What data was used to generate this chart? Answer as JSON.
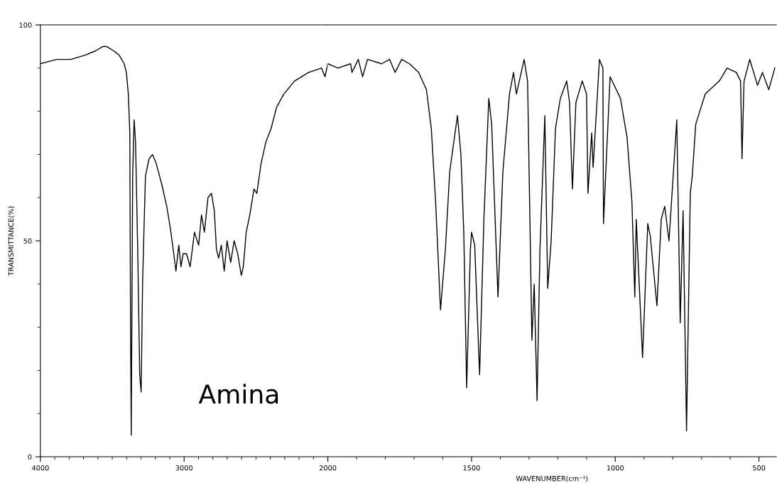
{
  "chart_data": [
    {
      "type": "line",
      "ylabel": "TRANSMITTANCE(%)",
      "annotations": [
        "Amina"
      ],
      "xlim": [
        4000,
        2000
      ],
      "ylim": [
        0,
        100
      ],
      "xticks": [
        4000,
        {
          "value": 3900,
          "label": null
        },
        {
          "value": 3800,
          "label": null
        },
        {
          "value": 3700,
          "label": null
        },
        {
          "value": 3600,
          "label": null
        },
        {
          "value": 3500,
          "label": null
        },
        {
          "value": 3400,
          "label": null
        },
        {
          "value": 3300,
          "label": null
        },
        {
          "value": 3200,
          "label": null
        },
        {
          "value": 3100,
          "label": null
        },
        3000,
        {
          "value": 2900,
          "label": null
        },
        {
          "value": 2800,
          "label": null
        },
        {
          "value": 2700,
          "label": null
        },
        {
          "value": 2600,
          "label": null
        },
        {
          "value": 2500,
          "label": null
        },
        {
          "value": 2400,
          "label": null
        },
        {
          "value": 2300,
          "label": null
        },
        {
          "value": 2200,
          "label": null
        },
        {
          "value": 2100,
          "label": null
        }
      ],
      "yticks": [
        0,
        {
          "value": 10,
          "label": null
        },
        {
          "value": 20,
          "label": null
        },
        {
          "value": 30,
          "label": null
        },
        {
          "value": 40,
          "label": null
        },
        50,
        {
          "value": 60,
          "label": null
        },
        {
          "value": 70,
          "label": null
        },
        {
          "value": 80,
          "label": null
        },
        {
          "value": 90,
          "label": null
        },
        100
      ],
      "series": [
        {
          "color": "#000000",
          "x": [
            4000,
            3886,
            3788,
            3689,
            3615,
            3565,
            3540,
            3491,
            3452,
            3417,
            3402,
            3388,
            3378,
            3373,
            3368,
            3358,
            3348,
            3338,
            3323,
            3309,
            3299,
            3289,
            3279,
            3269,
            3244,
            3220,
            3195,
            3155,
            3121,
            3096,
            3072,
            3057,
            3037,
            3022,
            3007,
            2983,
            2958,
            2928,
            2899,
            2879,
            2859,
            2834,
            2810,
            2790,
            2775,
            2760,
            2741,
            2721,
            2701,
            2676,
            2652,
            2627,
            2602,
            2588,
            2568,
            2543,
            2514,
            2494,
            2464,
            2430,
            2395,
            2356,
            2306,
            2232,
            2133,
            2044,
            2020,
            2000
          ],
          "values": [
            91,
            92,
            92,
            93,
            94,
            95,
            95,
            94,
            93,
            91,
            89,
            84,
            75,
            32,
            5,
            65,
            78,
            73,
            48,
            19,
            15,
            40,
            53,
            65,
            69,
            70,
            68,
            63,
            58,
            53,
            47,
            43,
            49,
            44,
            47,
            47,
            44,
            52,
            49,
            56,
            52,
            60,
            61,
            57,
            48,
            46,
            49,
            43,
            50,
            45,
            50,
            47,
            42,
            44,
            52,
            56,
            62,
            61,
            68,
            73,
            76,
            81,
            84,
            87,
            89,
            90,
            88,
            91
          ]
        }
      ]
    },
    {
      "type": "line",
      "xlabel": "WAVENUMBER(cm⁻¹)",
      "xlim": [
        2000,
        440
      ],
      "ylim": [
        0,
        100
      ],
      "tick_labels": "x",
      "xticks": [
        2000,
        {
          "value": 1900,
          "label": null
        },
        {
          "value": 1800,
          "label": null
        },
        {
          "value": 1700,
          "label": null
        },
        {
          "value": 1600,
          "label": null
        },
        1500,
        {
          "value": 1400,
          "label": null
        },
        {
          "value": 1300,
          "label": null
        },
        {
          "value": 1200,
          "label": null
        },
        {
          "value": 1100,
          "label": null
        },
        1000,
        {
          "value": 900,
          "label": null
        },
        {
          "value": 800,
          "label": null
        },
        {
          "value": 700,
          "label": null
        },
        {
          "value": 600,
          "label": null
        },
        500
      ],
      "series": [
        {
          "color": "#000000",
          "x": [
            2000,
            1965,
            1921,
            1916,
            1894,
            1879,
            1862,
            1813,
            1785,
            1766,
            1743,
            1716,
            1684,
            1657,
            1640,
            1625,
            1608,
            1591,
            1576,
            1549,
            1537,
            1527,
            1517,
            1504,
            1500,
            1489,
            1472,
            1457,
            1440,
            1430,
            1408,
            1391,
            1368,
            1354,
            1344,
            1317,
            1305,
            1290,
            1282,
            1272,
            1262,
            1245,
            1235,
            1223,
            1208,
            1191,
            1169,
            1159,
            1149,
            1137,
            1115,
            1100,
            1095,
            1082,
            1077,
            1055,
            1043,
            1041,
            1018,
            982,
            959,
            942,
            932,
            927,
            905,
            887,
            878,
            855,
            840,
            828,
            813,
            786,
            774,
            764,
            752,
            739,
            732,
            720,
            687,
            638,
            611,
            579,
            564,
            559,
            552,
            532,
            505,
            488,
            466,
            445
          ],
          "values": [
            91,
            90,
            91,
            89,
            92,
            88,
            92,
            91,
            92,
            89,
            92,
            91,
            89,
            85,
            76,
            59,
            34,
            48,
            66,
            79,
            70,
            52,
            16,
            48,
            52,
            49,
            19,
            55,
            83,
            77,
            37,
            66,
            84,
            89,
            84,
            92,
            87,
            27,
            40,
            13,
            48,
            79,
            39,
            50,
            76,
            83,
            87,
            82,
            62,
            82,
            87,
            84,
            61,
            75,
            67,
            92,
            90,
            54,
            88,
            83,
            74,
            59,
            37,
            55,
            23,
            54,
            51,
            35,
            55,
            58,
            50,
            78,
            31,
            57,
            6,
            61,
            65,
            77,
            84,
            87,
            90,
            89,
            87,
            69,
            87,
            92,
            86,
            89,
            85,
            90
          ]
        }
      ]
    }
  ]
}
